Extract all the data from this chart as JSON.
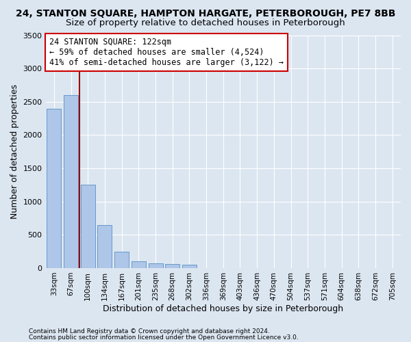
{
  "title_line1": "24, STANTON SQUARE, HAMPTON HARGATE, PETERBOROUGH, PE7 8BB",
  "title_line2": "Size of property relative to detached houses in Peterborough",
  "xlabel": "Distribution of detached houses by size in Peterborough",
  "ylabel": "Number of detached properties",
  "footnote1": "Contains HM Land Registry data © Crown copyright and database right 2024.",
  "footnote2": "Contains public sector information licensed under the Open Government Licence v3.0.",
  "categories": [
    "33sqm",
    "67sqm",
    "100sqm",
    "134sqm",
    "167sqm",
    "201sqm",
    "235sqm",
    "268sqm",
    "302sqm",
    "336sqm",
    "369sqm",
    "403sqm",
    "436sqm",
    "470sqm",
    "504sqm",
    "537sqm",
    "571sqm",
    "604sqm",
    "638sqm",
    "672sqm",
    "705sqm"
  ],
  "values": [
    2400,
    2600,
    1250,
    650,
    250,
    100,
    70,
    60,
    50,
    0,
    0,
    0,
    0,
    0,
    0,
    0,
    0,
    0,
    0,
    0,
    0
  ],
  "bar_color": "#aec6e8",
  "bar_edge_color": "#6699cc",
  "vline_color": "#990000",
  "annotation_text": "24 STANTON SQUARE: 122sqm\n← 59% of detached houses are smaller (4,524)\n41% of semi-detached houses are larger (3,122) →",
  "annotation_box_color": "white",
  "annotation_box_edge_color": "#cc0000",
  "ylim": [
    0,
    3500
  ],
  "yticks": [
    0,
    500,
    1000,
    1500,
    2000,
    2500,
    3000,
    3500
  ],
  "bg_color": "#dce6f1",
  "plot_bg_color": "#dce6f1",
  "grid_color": "white",
  "title_fontsize": 10,
  "subtitle_fontsize": 9.5
}
